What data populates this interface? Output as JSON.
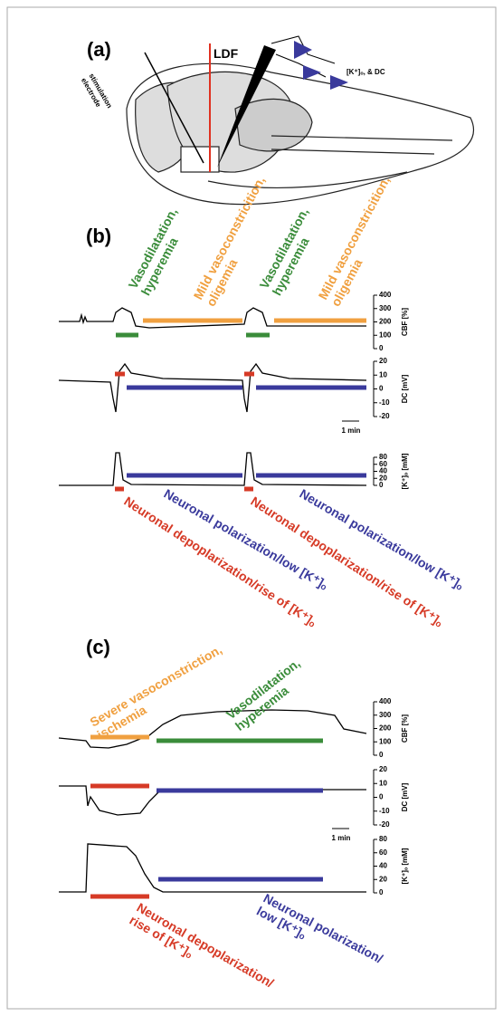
{
  "panel_a": {
    "label": "(a)",
    "ldf_label": "LDF",
    "electrode_label": [
      "stimulation",
      "electrode"
    ],
    "probe_label": "[K⁺]ₒ, & DC"
  },
  "panel_b": {
    "label": "(b)",
    "hyperemia": [
      "Vasodilatation,",
      "hyperemia"
    ],
    "oligemia": [
      "Mild vasoconstricition,",
      "oligemia"
    ],
    "depolarization": "Neuronal depoplarization/rise of [K⁺]ₒ",
    "polarization": "Neuronal polarization/low [K⁺]ₒ",
    "axes": [
      {
        "label": "CBF [%]",
        "ticks": [
          400,
          300,
          200,
          100,
          0
        ]
      },
      {
        "label": "DC [mV]",
        "ticks": [
          20,
          10,
          0,
          -10,
          -20
        ]
      },
      {
        "label": "[K⁺]ₒ [mM]",
        "ticks": [
          80,
          60,
          40,
          20,
          0
        ]
      }
    ],
    "scale_bar": "1 min"
  },
  "panel_c": {
    "label": "(c)",
    "ischemia": [
      "Severe vasoconstriction,",
      "ischemia"
    ],
    "hyperemia": [
      "Vasodilatation,",
      "hyperemia"
    ],
    "depolarization": [
      "Neuronal depoplarization/",
      "rise of [K⁺]ₒ"
    ],
    "polarization": [
      "Neuronal polarization/",
      "low [K⁺]ₒ"
    ],
    "axes": [
      {
        "label": "CBF [%]",
        "ticks": [
          400,
          300,
          200,
          100,
          0
        ]
      },
      {
        "label": "DC [mV]",
        "ticks": [
          20,
          10,
          0,
          -10,
          -20
        ]
      },
      {
        "label": "[K⁺]ₒ [mM]",
        "ticks": [
          80,
          60,
          40,
          20,
          0
        ]
      }
    ],
    "scale_bar": "1 min"
  }
}
